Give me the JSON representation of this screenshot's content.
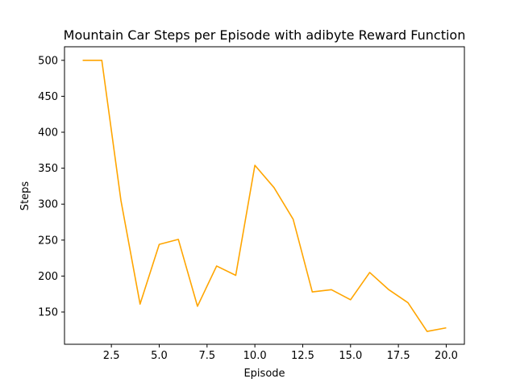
{
  "chart_data": {
    "type": "line",
    "title": "Mountain Car Steps per Episode with adibyte Reward Function",
    "xlabel": "Episode",
    "ylabel": "Steps",
    "xlim": [
      0.05,
      20.95
    ],
    "ylim": [
      105.15,
      518.85
    ],
    "xticks": [
      2.5,
      5.0,
      7.5,
      10.0,
      12.5,
      15.0,
      17.5,
      20.0
    ],
    "xtick_labels": [
      "2.5",
      "5.0",
      "7.5",
      "10.0",
      "12.5",
      "15.0",
      "17.5",
      "20.0"
    ],
    "yticks": [
      150,
      200,
      250,
      300,
      350,
      400,
      450,
      500
    ],
    "ytick_labels": [
      "150",
      "200",
      "250",
      "300",
      "350",
      "400",
      "450",
      "500"
    ],
    "grid": false,
    "legend": "none",
    "series": [
      {
        "color": "#FFA500",
        "x": [
          1,
          2,
          3,
          4,
          5,
          6,
          7,
          8,
          9,
          10,
          11,
          12,
          13,
          14,
          15,
          16,
          17,
          18,
          19,
          20
        ],
        "y": [
          500,
          500,
          305,
          161,
          244,
          251,
          158,
          214,
          201,
          354,
          323,
          279,
          178,
          181,
          167,
          205,
          181,
          163,
          123,
          128
        ]
      }
    ]
  }
}
